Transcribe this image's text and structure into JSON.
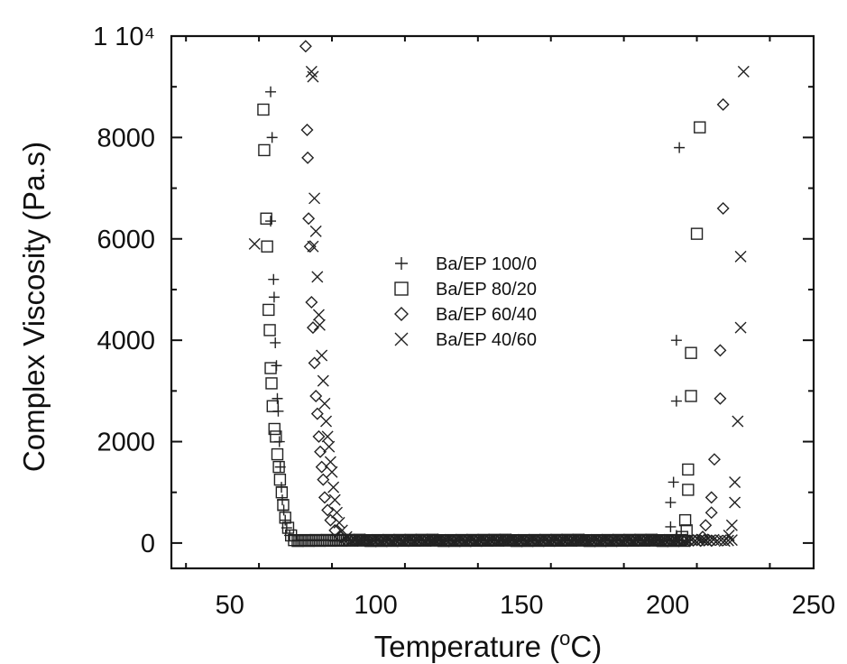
{
  "chart_data": {
    "type": "scatter",
    "xlabel": "Temperature (°C)",
    "xlabel_parts": {
      "main": "Temperature (",
      "sup": "o",
      "tail": "C)"
    },
    "ylabel": "Complex Viscosity (Pa.s)",
    "xlim": [
      30,
      250
    ],
    "ylim": [
      -500,
      10000
    ],
    "x_ticks": [
      50,
      100,
      150,
      200,
      250
    ],
    "y_ticks": [
      0,
      2000,
      4000,
      6000,
      8000,
      10000
    ],
    "y_tick_labels": [
      "0",
      "2000",
      "4000",
      "6000",
      "8000",
      "1 10⁴"
    ],
    "grid": false,
    "legend_position": "center",
    "series": [
      {
        "name": "Ba/EP 100/0",
        "marker": "plus",
        "low": [
          [
            64,
            8900
          ],
          [
            64.5,
            8000
          ],
          [
            64,
            6350
          ],
          [
            65,
            5200
          ],
          [
            65.2,
            4850
          ],
          [
            65.6,
            3950
          ],
          [
            66,
            3500
          ],
          [
            66.3,
            2850
          ],
          [
            66.6,
            2600
          ],
          [
            67,
            2000
          ],
          [
            67.3,
            1500
          ],
          [
            67.7,
            1100
          ],
          [
            68,
            850
          ],
          [
            68.5,
            650
          ],
          [
            69,
            450
          ],
          [
            69.5,
            300
          ],
          [
            70.5,
            150
          ]
        ],
        "high": [
          [
            204,
            7800
          ],
          [
            203,
            4000
          ],
          [
            203,
            2800
          ],
          [
            202,
            1200
          ],
          [
            201,
            800
          ],
          [
            201,
            320
          ],
          [
            203,
            150
          ]
        ],
        "plateau": [
          72,
          204
        ]
      },
      {
        "name": "Ba/EP 80/20",
        "marker": "square",
        "low": [
          [
            61.5,
            8550
          ],
          [
            61.8,
            7750
          ],
          [
            62.5,
            6400
          ],
          [
            62.8,
            5850
          ],
          [
            63.3,
            4600
          ],
          [
            63.7,
            4200
          ],
          [
            64,
            3450
          ],
          [
            64.3,
            3150
          ],
          [
            64.7,
            2700
          ],
          [
            65.3,
            2250
          ],
          [
            65.8,
            2100
          ],
          [
            66.3,
            1750
          ],
          [
            66.8,
            1500
          ],
          [
            67.2,
            1250
          ],
          [
            67.8,
            1000
          ],
          [
            68.3,
            750
          ],
          [
            69,
            500
          ],
          [
            70,
            300
          ],
          [
            71,
            150
          ]
        ],
        "high": [
          [
            211,
            8200
          ],
          [
            210,
            6100
          ],
          [
            208,
            3750
          ],
          [
            208,
            2900
          ],
          [
            207,
            1450
          ],
          [
            207,
            1050
          ],
          [
            206,
            450
          ],
          [
            206.5,
            250
          ],
          [
            205,
            120
          ]
        ],
        "plateau": [
          72,
          206
        ]
      },
      {
        "name": "Ba/EP 60/40",
        "marker": "diamond",
        "low": [
          [
            76,
            9800
          ],
          [
            76.5,
            8150
          ],
          [
            76.7,
            7600
          ],
          [
            77,
            6400
          ],
          [
            77.5,
            5850
          ],
          [
            78,
            4750
          ],
          [
            78.5,
            4250
          ],
          [
            79,
            3550
          ],
          [
            79.5,
            2900
          ],
          [
            80,
            2550
          ],
          [
            80.5,
            2100
          ],
          [
            81,
            1800
          ],
          [
            81.5,
            1500
          ],
          [
            82,
            1250
          ],
          [
            82.5,
            900
          ],
          [
            83.5,
            650
          ],
          [
            84.5,
            450
          ],
          [
            86,
            250
          ],
          [
            88,
            120
          ]
        ],
        "high": [
          [
            219,
            8650
          ],
          [
            219,
            6600
          ],
          [
            218,
            3800
          ],
          [
            218,
            2850
          ],
          [
            216,
            1650
          ],
          [
            215,
            900
          ],
          [
            215,
            600
          ],
          [
            213,
            350
          ],
          [
            212,
            120
          ]
        ],
        "plateau": [
          90,
          216
        ]
      },
      {
        "name": "Ba/EP 40/60",
        "marker": "cross",
        "low": [
          [
            58.5,
            5900
          ],
          [
            78,
            9300
          ],
          [
            78.5,
            9200
          ],
          [
            79,
            6800
          ],
          [
            79.5,
            6150
          ],
          [
            78.5,
            5850
          ],
          [
            80,
            5250
          ],
          [
            80.5,
            4500
          ],
          [
            80.8,
            4300
          ],
          [
            81.5,
            3700
          ],
          [
            82,
            3200
          ],
          [
            82.5,
            2750
          ],
          [
            83,
            2400
          ],
          [
            83.5,
            2100
          ],
          [
            84,
            1900
          ],
          [
            84.5,
            1600
          ],
          [
            85,
            1400
          ],
          [
            85.5,
            1100
          ],
          [
            86,
            850
          ],
          [
            86.7,
            600
          ],
          [
            87.5,
            400
          ],
          [
            88.5,
            250
          ],
          [
            90,
            120
          ]
        ],
        "high": [
          [
            226,
            9300
          ],
          [
            225,
            5650
          ],
          [
            225,
            4250
          ],
          [
            224,
            2400
          ],
          [
            223,
            1200
          ],
          [
            223,
            800
          ],
          [
            222,
            350
          ],
          [
            221,
            150
          ]
        ],
        "plateau": [
          92,
          222
        ]
      }
    ]
  }
}
